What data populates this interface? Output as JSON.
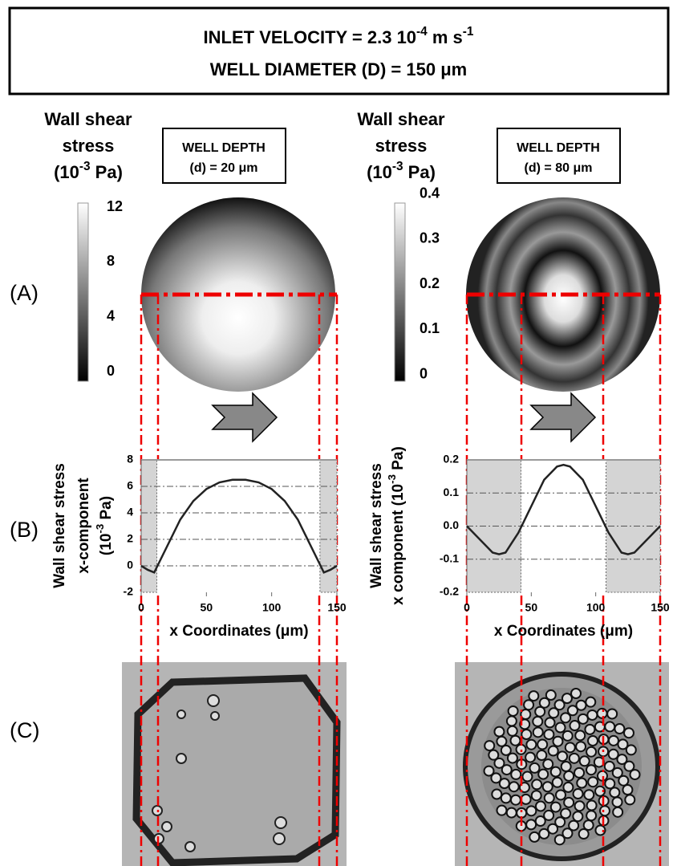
{
  "header": {
    "lines": [
      [
        "INLET VELOCITY = 2.3  10",
        "-4",
        " m s",
        "-1"
      ],
      [
        "WELL DIAMETER (D) = 150 μm"
      ]
    ]
  },
  "panel_labels": [
    "(A)",
    "(B)",
    "(C)"
  ],
  "colorbars": [
    {
      "title": [
        [
          "Wall shear"
        ],
        [
          "stress"
        ],
        [
          "(10",
          "-3",
          " Pa)"
        ]
      ],
      "lim": [
        -0.7,
        12.3
      ],
      "ticks": [
        12,
        8,
        4,
        0
      ]
    },
    {
      "title": [
        [
          "Wall shear"
        ],
        [
          "stress"
        ],
        [
          "(10",
          "-3",
          " Pa)"
        ]
      ],
      "lim": [
        -0.015,
        0.38
      ],
      "ticks": [
        0.4,
        0.3,
        0.2,
        0.1,
        0
      ]
    }
  ],
  "well_depth": [
    [
      "WELL DEPTH",
      "(d) = 20 μm"
    ],
    [
      "WELL DEPTH",
      "(d) = 80 μm"
    ]
  ],
  "chart_data": [
    {
      "type": "line",
      "xlabel": "x Coordinates (μm)",
      "ylabel_lines": [
        [
          "Wall shear stress"
        ],
        [
          "x-component"
        ],
        [
          "(10",
          "-3",
          " Pa)"
        ]
      ],
      "x": [
        0,
        5,
        10,
        15,
        20,
        30,
        40,
        50,
        60,
        70,
        75,
        80,
        90,
        100,
        110,
        120,
        130,
        135,
        140,
        145,
        150
      ],
      "values": [
        0,
        -0.3,
        -0.5,
        0.5,
        1.5,
        3.5,
        4.9,
        5.8,
        6.3,
        6.5,
        6.5,
        6.5,
        6.3,
        5.8,
        4.9,
        3.5,
        1.5,
        0.5,
        -0.5,
        -0.3,
        0
      ],
      "color": "#222222",
      "xlim": [
        0,
        150
      ],
      "xticks": [
        0,
        50,
        100,
        150
      ],
      "ylim": [
        -2,
        8
      ],
      "yticks": [
        8,
        6,
        4,
        2,
        0,
        -2
      ],
      "shaded": [
        [
          0,
          12
        ],
        [
          137,
          150
        ]
      ],
      "grid": true
    },
    {
      "type": "line",
      "xlabel": "x Coordinates (μm)",
      "ylabel_lines": [
        [
          "Wall shear stress"
        ],
        [
          "x component (10",
          "-3",
          " Pa)"
        ]
      ],
      "x": [
        0,
        10,
        20,
        25,
        30,
        40,
        50,
        60,
        70,
        75,
        80,
        90,
        100,
        110,
        120,
        125,
        130,
        140,
        150
      ],
      "values": [
        0,
        -0.04,
        -0.08,
        -0.085,
        -0.08,
        -0.02,
        0.06,
        0.14,
        0.18,
        0.185,
        0.18,
        0.14,
        0.06,
        -0.02,
        -0.08,
        -0.085,
        -0.08,
        -0.04,
        0
      ],
      "color": "#222222",
      "xlim": [
        0,
        150
      ],
      "xticks": [
        0,
        50,
        100,
        150
      ],
      "ylim": [
        -0.2,
        0.2
      ],
      "yticks": [
        0.2,
        0.1,
        {
          "value": 0,
          "label": "0.0"
        },
        -0.1,
        -0.2
      ],
      "shaded": [
        [
          0,
          42
        ],
        [
          108,
          150
        ]
      ],
      "grid": true
    }
  ]
}
